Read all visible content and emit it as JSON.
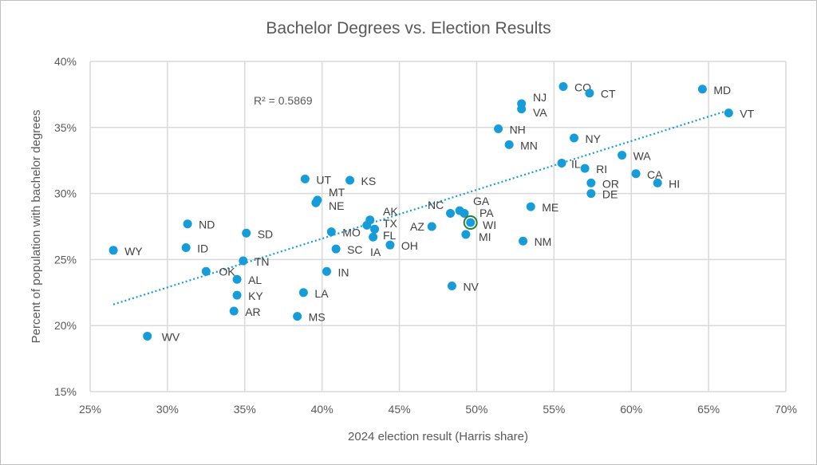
{
  "chart_data": {
    "type": "scatter",
    "title": "Bachelor Degrees vs. Election Results",
    "xlabel": "2024 election result (Harris share)",
    "ylabel": "Percent of population with bachelor degrees",
    "xlim": [
      25,
      70
    ],
    "ylim": [
      15,
      40
    ],
    "xticks": [
      "25%",
      "30%",
      "35%",
      "40%",
      "45%",
      "50%",
      "55%",
      "60%",
      "65%",
      "70%"
    ],
    "yticks": [
      "15%",
      "20%",
      "25%",
      "30%",
      "35%",
      "40%"
    ],
    "grid": true,
    "legend": "none",
    "point_color": "#169CD8",
    "highlight_color": "#2E7D32",
    "highlighted_point": "WI",
    "trendline": {
      "type": "linear",
      "style": "dotted",
      "r_squared_label": "R² = 0.5869",
      "r_squared": 0.5869,
      "x": [
        26.5,
        66.3
      ],
      "y": [
        21.6,
        36.3
      ]
    },
    "points": [
      {
        "label": "WY",
        "x": 26.5,
        "y": 25.7
      },
      {
        "label": "WV",
        "x": 28.7,
        "y": 19.2
      },
      {
        "label": "ND",
        "x": 31.3,
        "y": 27.7
      },
      {
        "label": "ID",
        "x": 31.2,
        "y": 25.9
      },
      {
        "label": "OK",
        "x": 32.5,
        "y": 24.1
      },
      {
        "label": "SD",
        "x": 35.1,
        "y": 27.0
      },
      {
        "label": "TN",
        "x": 34.9,
        "y": 24.9
      },
      {
        "label": "AL",
        "x": 34.5,
        "y": 23.5
      },
      {
        "label": "KY",
        "x": 34.5,
        "y": 22.3
      },
      {
        "label": "AR",
        "x": 34.3,
        "y": 21.1
      },
      {
        "label": "MS",
        "x": 38.4,
        "y": 20.7
      },
      {
        "label": "LA",
        "x": 38.8,
        "y": 22.5
      },
      {
        "label": "IN",
        "x": 40.3,
        "y": 24.1
      },
      {
        "label": "UT",
        "x": 38.9,
        "y": 31.1
      },
      {
        "label": "KS",
        "x": 41.8,
        "y": 31.0
      },
      {
        "label": "MT",
        "x": 39.7,
        "y": 29.5
      },
      {
        "label": "NE",
        "x": 39.6,
        "y": 29.3
      },
      {
        "label": "MO",
        "x": 40.6,
        "y": 27.1
      },
      {
        "label": "SC",
        "x": 40.9,
        "y": 25.8
      },
      {
        "label": "AK",
        "x": 43.1,
        "y": 28.0
      },
      {
        "label": "TX",
        "x": 42.9,
        "y": 27.6
      },
      {
        "label": "FL",
        "x": 43.4,
        "y": 27.3
      },
      {
        "label": "IA",
        "x": 43.3,
        "y": 26.7
      },
      {
        "label": "OH",
        "x": 44.4,
        "y": 26.1
      },
      {
        "label": "AZ",
        "x": 47.1,
        "y": 27.5
      },
      {
        "label": "GA",
        "x": 48.9,
        "y": 28.7
      },
      {
        "label": "NC",
        "x": 48.3,
        "y": 28.5
      },
      {
        "label": "PA",
        "x": 49.2,
        "y": 28.5
      },
      {
        "label": "WI",
        "x": 49.6,
        "y": 27.8
      },
      {
        "label": "MI",
        "x": 49.3,
        "y": 26.9
      },
      {
        "label": "NV",
        "x": 48.4,
        "y": 23.0
      },
      {
        "label": "NM",
        "x": 53.0,
        "y": 26.4
      },
      {
        "label": "ME",
        "x": 53.5,
        "y": 29.0
      },
      {
        "label": "NH",
        "x": 51.4,
        "y": 34.9
      },
      {
        "label": "MN",
        "x": 52.1,
        "y": 33.7
      },
      {
        "label": "NJ",
        "x": 52.9,
        "y": 36.8
      },
      {
        "label": "VA",
        "x": 52.9,
        "y": 36.4
      },
      {
        "label": "CO",
        "x": 55.6,
        "y": 38.1
      },
      {
        "label": "CT",
        "x": 57.3,
        "y": 37.6
      },
      {
        "label": "NY",
        "x": 56.3,
        "y": 34.2
      },
      {
        "label": "IL",
        "x": 55.5,
        "y": 32.3
      },
      {
        "label": "RI",
        "x": 57.0,
        "y": 31.9
      },
      {
        "label": "OR",
        "x": 57.4,
        "y": 30.8
      },
      {
        "label": "DE",
        "x": 57.4,
        "y": 30.0
      },
      {
        "label": "WA",
        "x": 59.4,
        "y": 32.9
      },
      {
        "label": "CA",
        "x": 60.3,
        "y": 31.5
      },
      {
        "label": "HI",
        "x": 61.7,
        "y": 30.8
      },
      {
        "label": "MD",
        "x": 64.6,
        "y": 37.9
      },
      {
        "label": "VT",
        "x": 66.3,
        "y": 36.1
      }
    ]
  }
}
